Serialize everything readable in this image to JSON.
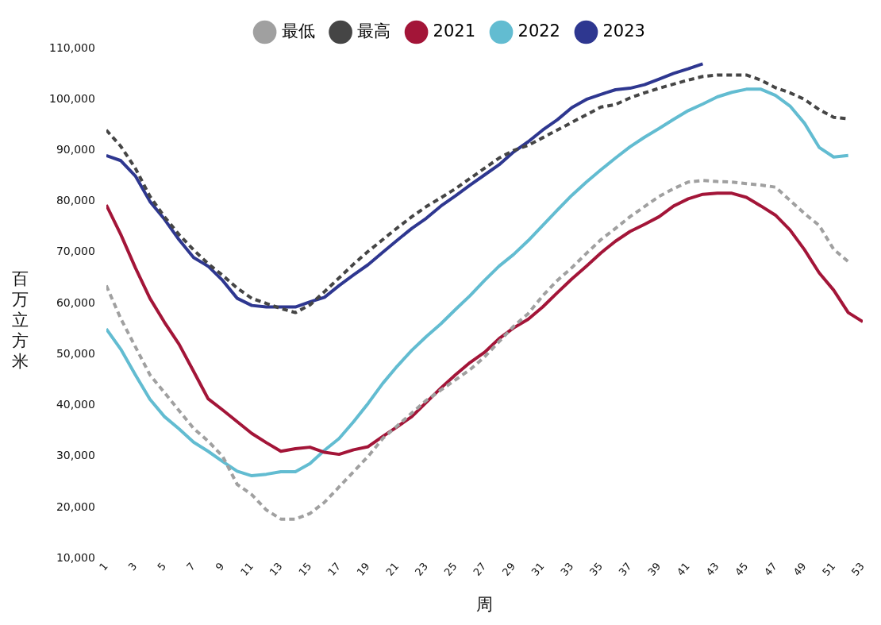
{
  "chart_data": {
    "type": "line",
    "xlabel": "周",
    "ylabel": "百万立方米",
    "legend": "top",
    "grid": false,
    "marker": "none",
    "xlim": [
      1,
      53
    ],
    "xticks": [
      1,
      3,
      5,
      7,
      9,
      11,
      13,
      15,
      17,
      19,
      21,
      23,
      25,
      27,
      29,
      31,
      33,
      35,
      37,
      39,
      41,
      43,
      45,
      47,
      49,
      51,
      53
    ],
    "ylim": [
      10000,
      110000
    ],
    "yticks": [
      {
        "value": 10000,
        "label": "10,000"
      },
      {
        "value": 20000,
        "label": "20,000"
      },
      {
        "value": 30000,
        "label": "30,000"
      },
      {
        "value": 40000,
        "label": "40,000"
      },
      {
        "value": 50000,
        "label": "50,000"
      },
      {
        "value": 60000,
        "label": "60,000"
      },
      {
        "value": 70000,
        "label": "70,000"
      },
      {
        "value": 80000,
        "label": "80,000"
      },
      {
        "value": 90000,
        "label": "90,000"
      },
      {
        "value": 100000,
        "label": "100,000"
      },
      {
        "value": 110000,
        "label": "110,000"
      }
    ],
    "x": [
      1,
      2,
      3,
      4,
      5,
      6,
      7,
      8,
      9,
      10,
      11,
      12,
      13,
      14,
      15,
      16,
      17,
      18,
      19,
      20,
      21,
      22,
      23,
      24,
      25,
      26,
      27,
      28,
      29,
      30,
      31,
      32,
      33,
      34,
      35,
      36,
      37,
      38,
      39,
      40,
      41,
      42,
      43,
      44,
      45,
      46,
      47,
      48,
      49,
      50,
      51,
      52,
      53
    ],
    "series": [
      {
        "name": "最低",
        "color": "#a0a0a0",
        "line_style": "dashed",
        "values": [
          63500,
          57000,
          51500,
          46000,
          42500,
          39000,
          35500,
          33000,
          30000,
          24500,
          22500,
          19500,
          17700,
          17700,
          18800,
          21000,
          24000,
          27000,
          30000,
          33500,
          36000,
          38500,
          41000,
          43000,
          45000,
          47000,
          49500,
          52500,
          55500,
          58000,
          61500,
          64500,
          67000,
          69800,
          72500,
          74700,
          77000,
          79000,
          81000,
          82500,
          83800,
          84100,
          83900,
          83800,
          83500,
          83200,
          82800,
          80200,
          77600,
          75300,
          70600,
          68200,
          null
        ]
      },
      {
        "name": "最高",
        "color": "#454545",
        "line_style": "dashed",
        "values": [
          94000,
          90800,
          86500,
          81000,
          77000,
          73500,
          70500,
          67800,
          65500,
          63000,
          61000,
          60000,
          59000,
          58200,
          59700,
          62300,
          65000,
          67700,
          70200,
          72500,
          74800,
          77000,
          79000,
          80700,
          82500,
          84500,
          86500,
          88500,
          90000,
          91000,
          92500,
          94000,
          95500,
          97000,
          98500,
          99000,
          100300,
          101300,
          102200,
          103000,
          103800,
          104500,
          104800,
          104800,
          104800,
          103800,
          102300,
          101300,
          100000,
          98000,
          96500,
          96200,
          null
        ]
      },
      {
        "name": "2021",
        "color": "#a31538",
        "line_style": "solid",
        "values": [
          79300,
          73500,
          67000,
          61000,
          56300,
          52000,
          46700,
          41300,
          39100,
          36800,
          34500,
          32700,
          31000,
          31500,
          31800,
          30800,
          30400,
          31300,
          31900,
          33900,
          35800,
          37800,
          40600,
          43400,
          46000,
          48400,
          50400,
          53100,
          55200,
          56900,
          59300,
          62100,
          64800,
          67300,
          69900,
          72200,
          74100,
          75500,
          77000,
          79100,
          80500,
          81400,
          81600,
          81600,
          80800,
          79100,
          77300,
          74400,
          70500,
          66000,
          62600,
          58200,
          56400
        ]
      },
      {
        "name": "2022",
        "color": "#62bcd1",
        "line_style": "solid",
        "values": [
          55000,
          51000,
          46000,
          41200,
          37800,
          35400,
          32800,
          31000,
          29000,
          27100,
          26200,
          26500,
          27000,
          27000,
          28600,
          31200,
          33500,
          36800,
          40400,
          44300,
          47700,
          50800,
          53500,
          56000,
          58800,
          61500,
          64500,
          67300,
          69600,
          72300,
          75300,
          78300,
          81200,
          83800,
          86200,
          88500,
          90700,
          92600,
          94300,
          96100,
          97800,
          99100,
          100500,
          101400,
          102000,
          102000,
          100800,
          98700,
          95300,
          90600,
          88700,
          89000,
          null
        ]
      },
      {
        "name": "2023",
        "color": "#2e3790",
        "line_style": "solid",
        "values": [
          89000,
          88000,
          85000,
          80000,
          76500,
          72500,
          69000,
          67300,
          64500,
          61000,
          59600,
          59300,
          59300,
          59300,
          60300,
          61200,
          63500,
          65600,
          67600,
          70000,
          72400,
          74700,
          76700,
          79100,
          81100,
          83200,
          85200,
          87200,
          89700,
          91700,
          94000,
          96000,
          98400,
          100000,
          101000,
          101900,
          102200,
          102900,
          104000,
          105100,
          106000,
          107000,
          null,
          null,
          null,
          null,
          null,
          null,
          null,
          null,
          null,
          null,
          null
        ]
      }
    ]
  }
}
